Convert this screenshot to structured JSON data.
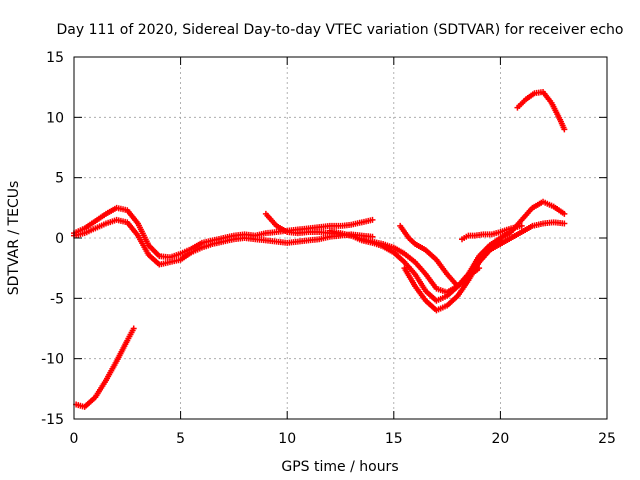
{
  "chart_data": {
    "type": "scatter",
    "title": "Day 111 of 2020, Sidereal Day-to-day VTEC variation (SDTVAR) for receiver echo",
    "xlabel": "GPS time / hours",
    "ylabel": "SDTVAR / TECUs",
    "xlim": [
      0,
      25
    ],
    "ylim": [
      -15,
      15
    ],
    "xticks": [
      0,
      5,
      10,
      15,
      20,
      25
    ],
    "yticks": [
      -15,
      -10,
      -5,
      0,
      5,
      10,
      15
    ],
    "xtick_labels": [
      "0",
      "5",
      "10",
      "15",
      "20",
      "25"
    ],
    "ytick_labels": [
      "-15",
      "-10",
      "-5",
      "0",
      "5",
      "10",
      "15"
    ],
    "grid": true,
    "marker": "+",
    "color": "#ff0000",
    "series": [
      {
        "name": "trace-main-upper",
        "x": [
          0.0,
          0.5,
          1.0,
          1.5,
          2.0,
          2.5,
          3.0,
          3.5,
          4.0,
          4.5,
          5.0,
          5.5,
          6.0,
          6.5,
          7.0,
          7.5,
          8.0,
          8.5,
          9.0,
          9.5,
          10.0,
          10.5,
          11.0,
          11.5,
          12.0,
          12.5,
          13.0,
          13.5,
          14.0
        ],
        "y": [
          0.4,
          0.8,
          1.4,
          2.0,
          2.5,
          2.3,
          1.2,
          -0.6,
          -1.5,
          -1.6,
          -1.3,
          -0.9,
          -0.4,
          -0.2,
          0.0,
          0.2,
          0.3,
          0.2,
          0.4,
          0.5,
          0.6,
          0.7,
          0.8,
          0.9,
          1.0,
          1.0,
          1.1,
          1.3,
          1.5
        ]
      },
      {
        "name": "trace-main-lower",
        "x": [
          0.0,
          0.5,
          1.0,
          1.5,
          2.0,
          2.5,
          3.0,
          3.5,
          4.0,
          4.5,
          5.0,
          5.5,
          6.0,
          6.5,
          7.0,
          7.5,
          8.0,
          8.5,
          9.0,
          9.5,
          10.0,
          10.5,
          11.0,
          11.5,
          12.0,
          12.5,
          13.0,
          13.5,
          14.0
        ],
        "y": [
          0.2,
          0.4,
          0.8,
          1.2,
          1.5,
          1.3,
          0.2,
          -1.4,
          -2.2,
          -2.0,
          -1.8,
          -1.2,
          -0.8,
          -0.5,
          -0.3,
          -0.1,
          0.0,
          -0.1,
          -0.2,
          -0.3,
          -0.4,
          -0.3,
          -0.2,
          -0.1,
          0.1,
          0.2,
          0.3,
          0.2,
          0.1
        ]
      },
      {
        "name": "trace-mid-1",
        "x": [
          9.0,
          9.5,
          10.0,
          10.5,
          11.0,
          11.5,
          12.0,
          12.5,
          13.0,
          13.5,
          14.0,
          14.5,
          15.0,
          15.5,
          16.0,
          16.5,
          17.0,
          17.5,
          18.0,
          18.5,
          19.0
        ],
        "y": [
          2.0,
          1.0,
          0.5,
          0.4,
          0.5,
          0.5,
          0.4,
          0.3,
          0.2,
          -0.1,
          -0.3,
          -0.5,
          -0.8,
          -1.3,
          -2.0,
          -3.0,
          -4.2,
          -4.5,
          -4.0,
          -3.2,
          -2.5
        ]
      },
      {
        "name": "trace-mid-2",
        "x": [
          12.0,
          12.5,
          13.0,
          13.5,
          14.0,
          14.5,
          15.0,
          15.5,
          16.0,
          16.5,
          17.0,
          17.5,
          18.0,
          18.5,
          19.0,
          19.5,
          20.0
        ],
        "y": [
          0.6,
          0.4,
          0.2,
          -0.2,
          -0.4,
          -0.7,
          -1.2,
          -2.0,
          -3.0,
          -4.4,
          -5.2,
          -4.8,
          -4.0,
          -3.0,
          -2.0,
          -1.0,
          -0.2
        ]
      },
      {
        "name": "trace-mid-3",
        "x": [
          15.5,
          16.0,
          16.5,
          17.0,
          17.5,
          18.0,
          18.5,
          19.0,
          19.5,
          20.0,
          20.5,
          21.0,
          21.5,
          22.0,
          22.5,
          23.0
        ],
        "y": [
          -2.5,
          -4.0,
          -5.2,
          -6.0,
          -5.6,
          -4.8,
          -3.5,
          -2.0,
          -1.0,
          -0.5,
          0.0,
          0.5,
          1.0,
          1.2,
          1.3,
          1.2
        ]
      },
      {
        "name": "trace-mid-4",
        "x": [
          15.3,
          15.7,
          16.0,
          16.5,
          17.0,
          17.5,
          18.0,
          18.5,
          19.0,
          19.5,
          20.0,
          20.5,
          21.0,
          21.5,
          22.0,
          22.5,
          23.0
        ],
        "y": [
          1.0,
          0.0,
          -0.5,
          -1.0,
          -1.8,
          -3.0,
          -4.0,
          -3.0,
          -1.5,
          -0.6,
          0.0,
          0.5,
          1.5,
          2.5,
          3.0,
          2.6,
          2.0
        ]
      },
      {
        "name": "trace-late-short",
        "x": [
          18.2,
          18.5,
          18.8,
          19.2,
          19.6,
          20.0,
          20.5,
          21.0
        ],
        "y": [
          -0.1,
          0.2,
          0.2,
          0.3,
          0.3,
          0.5,
          0.8,
          1.0
        ]
      },
      {
        "name": "trace-bottom-left",
        "x": [
          0.1,
          0.5,
          1.0,
          1.5,
          2.0,
          2.5,
          2.8
        ],
        "y": [
          -13.8,
          -14.0,
          -13.2,
          -11.8,
          -10.2,
          -8.5,
          -7.5
        ]
      },
      {
        "name": "trace-top-right",
        "x": [
          20.8,
          21.2,
          21.6,
          22.0,
          22.4,
          22.8,
          23.0
        ],
        "y": [
          10.8,
          11.5,
          12.0,
          12.1,
          11.2,
          9.8,
          9.0
        ]
      }
    ]
  }
}
